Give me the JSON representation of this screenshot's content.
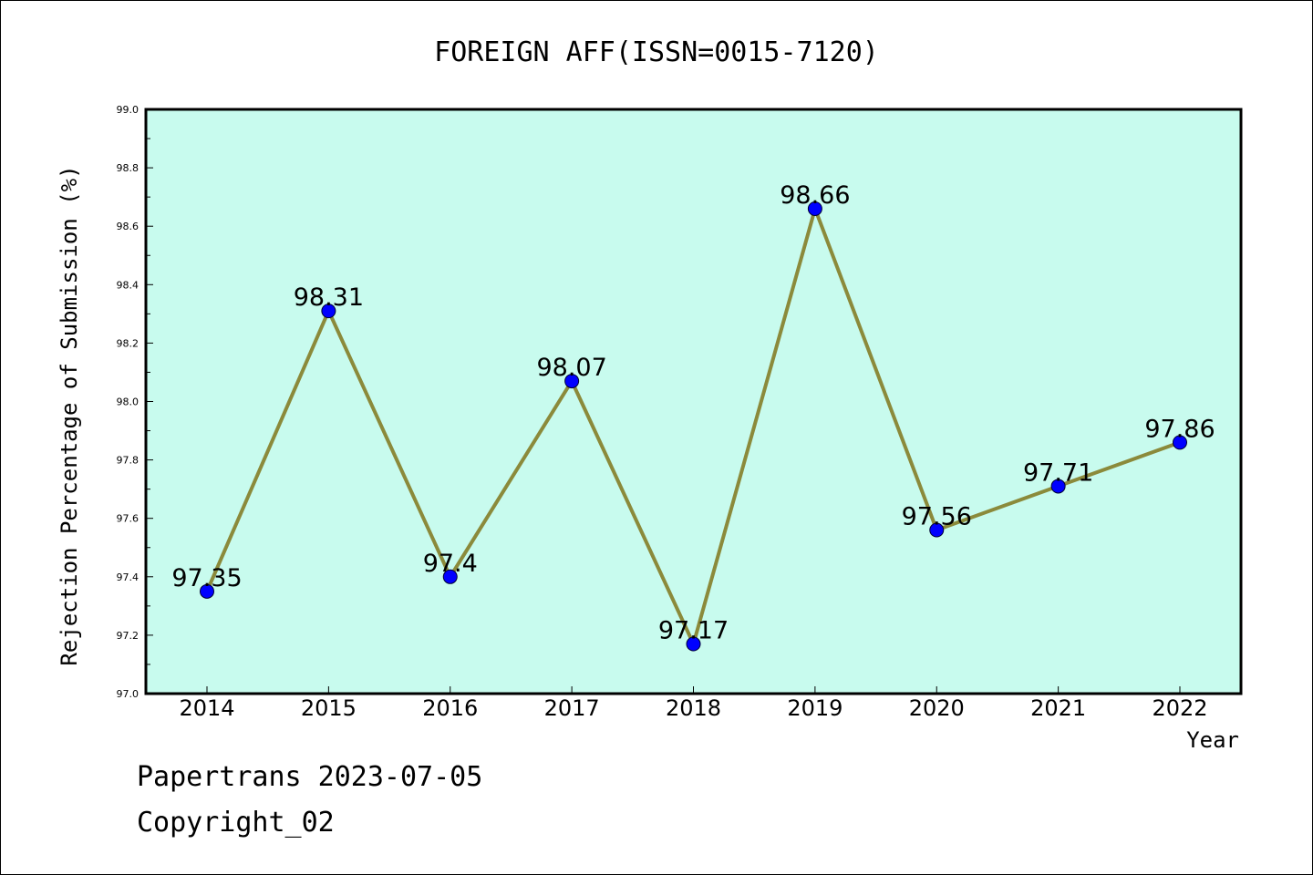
{
  "chart_data": {
    "type": "line",
    "title": "FOREIGN AFF(ISSN=0015-7120)",
    "xlabel": "Year",
    "ylabel": "Rejection Percentage of Submission (%)",
    "categories": [
      "2014",
      "2015",
      "2016",
      "2017",
      "2018",
      "2019",
      "2020",
      "2021",
      "2022"
    ],
    "series": [
      {
        "values": [
          97.35,
          98.31,
          97.4,
          98.07,
          97.17,
          98.66,
          97.56,
          97.71,
          97.86
        ],
        "labels": [
          "97.35",
          "98.31",
          "97.4",
          "98.07",
          "97.17",
          "98.66",
          "97.56",
          "97.71",
          "97.86"
        ]
      }
    ],
    "ylim": [
      97.0,
      99.0
    ],
    "yticks": [
      "97.0",
      "97.2",
      "97.4",
      "97.6",
      "97.8",
      "98.0",
      "98.2",
      "98.4",
      "98.6",
      "98.8",
      "99.0"
    ],
    "grid": false,
    "colors": {
      "plot_background": "#c8fbee",
      "line": "#8b8a3b",
      "marker": "#0000ff"
    }
  },
  "footer": {
    "line1": "Papertrans 2023-07-05",
    "line2": "Copyright_02"
  }
}
